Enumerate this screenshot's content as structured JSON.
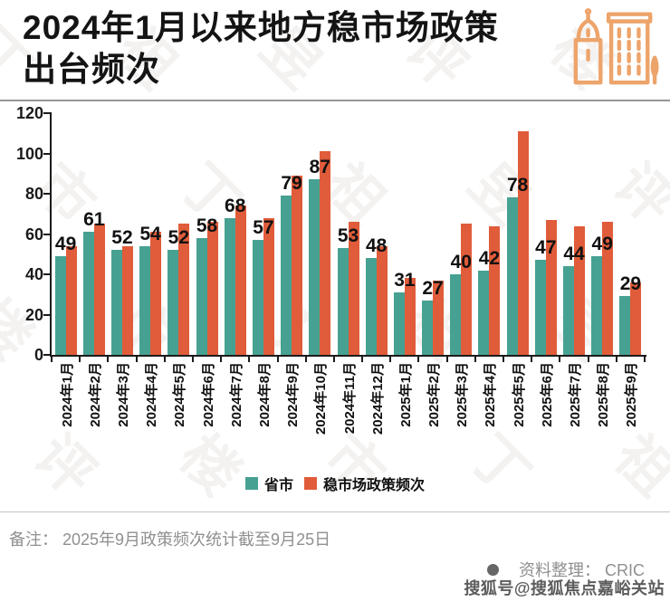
{
  "header": {
    "title_line1": "2024年1月以来地方稳市场政策",
    "title_line2": "出台频次",
    "icon": "buildings-icon"
  },
  "chart_data": {
    "type": "bar",
    "title": "2024年1月以来地方稳市场政策出台频次",
    "categories": [
      "2024年1月",
      "2024年2月",
      "2024年3月",
      "2024年4月",
      "2024年5月",
      "2024年6月",
      "2024年7月",
      "2024年8月",
      "2024年9月",
      "2024年10月",
      "2024年11月",
      "2024年12月",
      "2025年1月",
      "2025年2月",
      "2025年3月",
      "2025年4月",
      "2025年5月",
      "2025年6月",
      "2025年7月",
      "2025年8月",
      "2025年9月"
    ],
    "series": [
      {
        "key": "provinces",
        "name": "省市",
        "color": "#47a192",
        "show_labels": true,
        "values": [
          49,
          61,
          52,
          54,
          52,
          58,
          68,
          57,
          79,
          87,
          53,
          48,
          31,
          27,
          40,
          42,
          78,
          47,
          44,
          49,
          29
        ]
      },
      {
        "key": "policy-frequency",
        "name": "稳市场政策频次",
        "color": "#e05c3a",
        "show_labels": false,
        "values": [
          54,
          65,
          54,
          61,
          65,
          66,
          74,
          68,
          89,
          101,
          66,
          54,
          38,
          37,
          65,
          64,
          111,
          67,
          64,
          66,
          36
        ]
      }
    ],
    "ylim": [
      0,
      120
    ],
    "yticks": [
      0,
      20,
      40,
      60,
      80,
      100,
      120
    ],
    "grid": false,
    "legend_position": "bottom"
  },
  "footer": {
    "note": "备注： 2025年9月政策频次统计截至9月25日",
    "source_label": "资料整理： CRIC",
    "watermark": "搜狐号@搜狐焦点嘉峪关站"
  },
  "watermark_glyphs": [
    "丁",
    "祖",
    "昱",
    "评",
    "楼",
    "市"
  ],
  "colors": {
    "series_provinces": "#47a192",
    "series_policy": "#e05c3a",
    "icon_orange": "#eda46b",
    "title_text": "#141414",
    "note_text": "#909090"
  }
}
